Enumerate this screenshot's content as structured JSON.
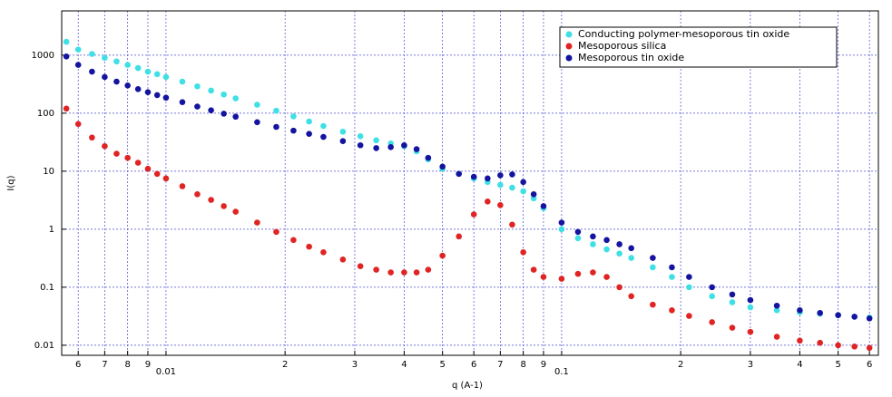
{
  "chart_data": {
    "type": "scatter",
    "x_label": "q (A-1)",
    "y_label": "I(q)",
    "x": [
      0.0056,
      0.006,
      0.0065,
      0.007,
      0.0075,
      0.008,
      0.0085,
      0.009,
      0.0095,
      0.01,
      0.011,
      0.012,
      0.013,
      0.014,
      0.015,
      0.017,
      0.019,
      0.021,
      0.023,
      0.025,
      0.028,
      0.031,
      0.034,
      0.037,
      0.04,
      0.043,
      0.046,
      0.05,
      0.055,
      0.06,
      0.065,
      0.07,
      0.075,
      0.08,
      0.085,
      0.09,
      0.1,
      0.11,
      0.12,
      0.13,
      0.14,
      0.15,
      0.17,
      0.19,
      0.21,
      0.24,
      0.27,
      0.3,
      0.35,
      0.4,
      0.45,
      0.5,
      0.55,
      0.6
    ],
    "series": [
      {
        "name": "Conducting polymer-mesoporous tin oxide",
        "color": "#3ee0e6",
        "values": [
          1700,
          1250,
          1050,
          900,
          780,
          680,
          600,
          520,
          470,
          420,
          350,
          290,
          245,
          210,
          180,
          140,
          110,
          88,
          72,
          60,
          48,
          40,
          34,
          30,
          27,
          22,
          16,
          11,
          9,
          7.5,
          6.5,
          5.8,
          5.2,
          4.5,
          3.4,
          2.3,
          1.0,
          0.7,
          0.55,
          0.45,
          0.38,
          0.32,
          0.22,
          0.15,
          0.1,
          0.07,
          0.055,
          0.045,
          0.04,
          0.037,
          0.035,
          0.033,
          0.031,
          0.03
        ]
      },
      {
        "name": "Mesoporous silica",
        "color": "#e02424",
        "values": [
          120,
          65,
          38,
          27,
          20,
          17,
          14,
          11,
          9,
          7.5,
          5.5,
          4,
          3.2,
          2.5,
          2,
          1.3,
          0.9,
          0.65,
          0.5,
          0.4,
          0.3,
          0.23,
          0.2,
          0.18,
          0.18,
          0.18,
          0.2,
          0.35,
          0.75,
          1.8,
          3,
          2.6,
          1.2,
          0.4,
          0.2,
          0.15,
          0.14,
          0.17,
          0.18,
          0.15,
          0.1,
          0.07,
          0.05,
          0.04,
          0.032,
          0.025,
          0.02,
          0.017,
          0.014,
          0.012,
          0.011,
          0.01,
          0.0095,
          0.009
        ]
      },
      {
        "name": "Mesoporous tin oxide",
        "color": "#1414a0",
        "values": [
          950,
          680,
          520,
          420,
          350,
          300,
          260,
          230,
          205,
          185,
          155,
          130,
          112,
          98,
          87,
          70,
          58,
          50,
          44,
          39,
          33,
          28,
          25,
          26,
          28,
          24,
          17,
          12,
          9,
          8,
          7.5,
          8.5,
          8.8,
          6.5,
          4,
          2.5,
          1.3,
          0.9,
          0.75,
          0.65,
          0.55,
          0.47,
          0.32,
          0.22,
          0.15,
          0.1,
          0.075,
          0.06,
          0.048,
          0.04,
          0.036,
          0.033,
          0.031,
          0.029
        ]
      }
    ],
    "xlim": [
      0.00545,
      0.632
    ],
    "ylim": [
      0.0067,
      5800
    ],
    "x_log": true,
    "y_log": true,
    "grid": true,
    "legend": "top-right",
    "xticks": [
      {
        "value": 0.006,
        "label": "6"
      },
      {
        "value": 0.007,
        "label": "7"
      },
      {
        "value": 0.008,
        "label": "8"
      },
      {
        "value": 0.009,
        "label": "9"
      },
      0.01,
      {
        "value": 0.02,
        "label": "2"
      },
      {
        "value": 0.03,
        "label": "3"
      },
      {
        "value": 0.04,
        "label": "4"
      },
      {
        "value": 0.05,
        "label": "5"
      },
      {
        "value": 0.06,
        "label": "6"
      },
      {
        "value": 0.07,
        "label": "7"
      },
      {
        "value": 0.08,
        "label": "8"
      },
      {
        "value": 0.09,
        "label": "9"
      },
      0.1,
      {
        "value": 0.2,
        "label": "2"
      },
      {
        "value": 0.3,
        "label": "3"
      },
      {
        "value": 0.4,
        "label": "4"
      },
      {
        "value": 0.5,
        "label": "5"
      },
      {
        "value": 0.6,
        "label": "6"
      }
    ],
    "yticks": [
      1000,
      100,
      10,
      1,
      0.1,
      0.01
    ]
  }
}
